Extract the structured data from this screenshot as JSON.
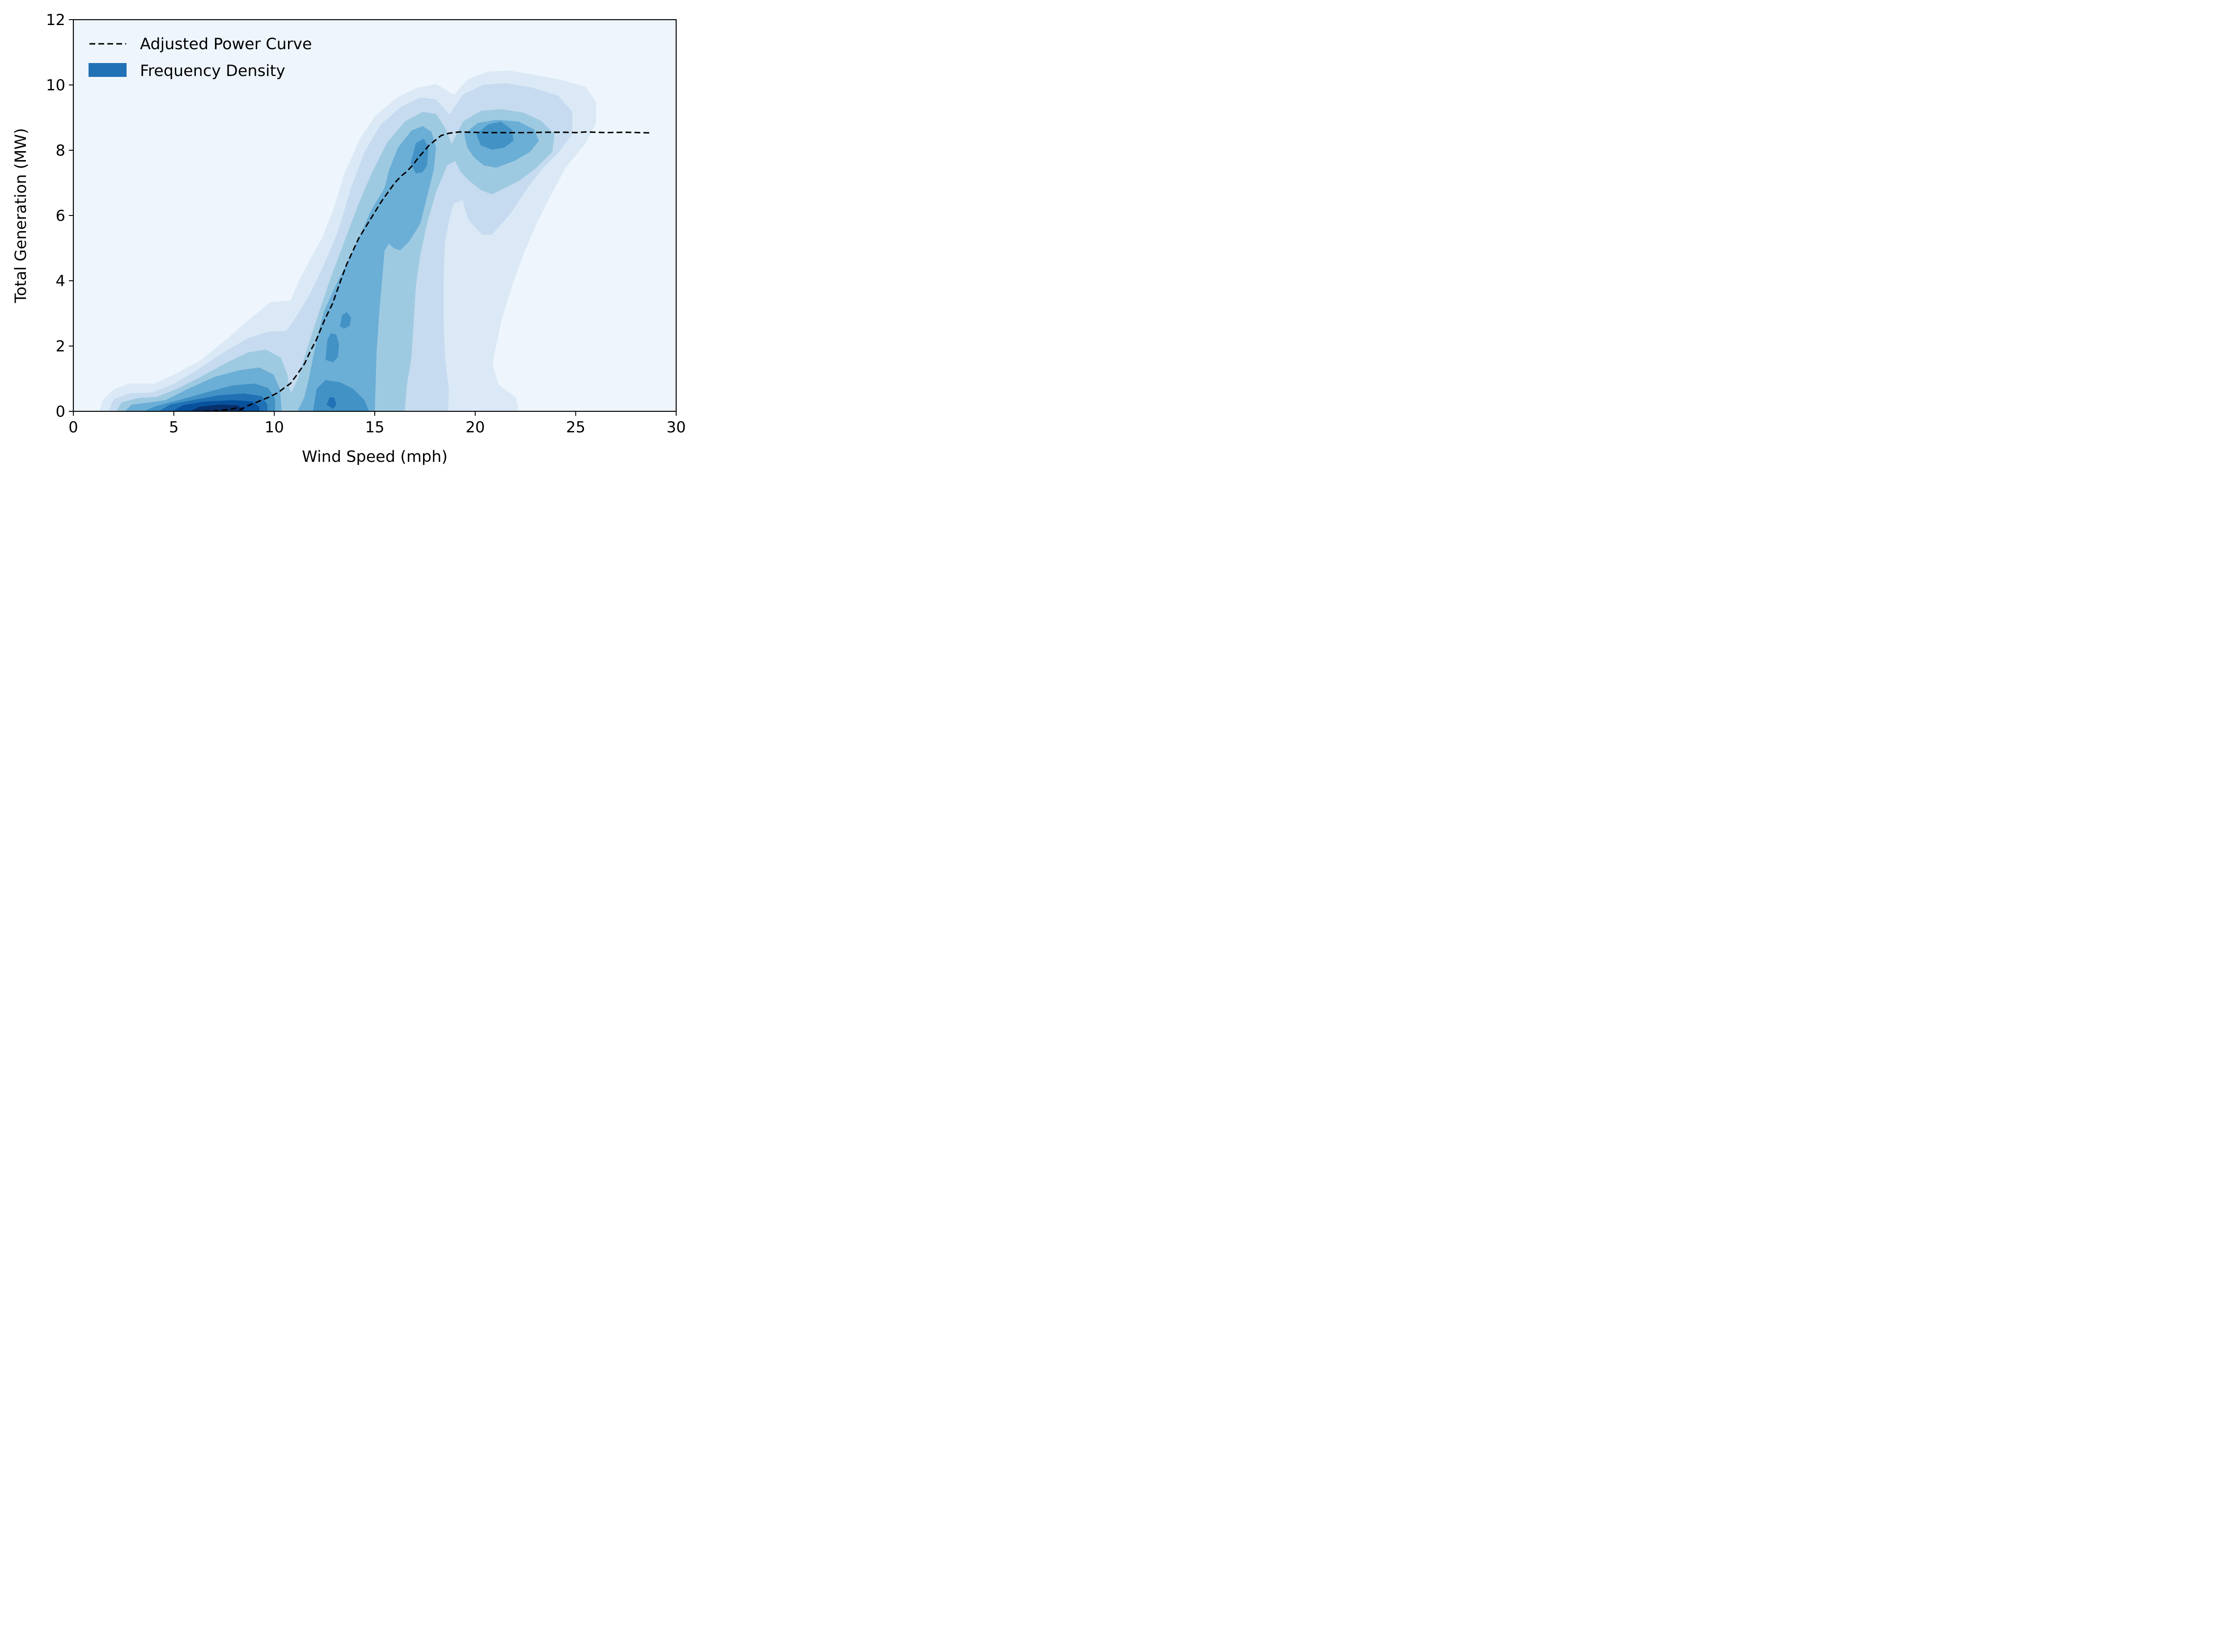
{
  "chart_data": {
    "type": "density_contour_with_line",
    "xlabel": "Wind Speed (mph)",
    "ylabel": "Total Generation (MW)",
    "xlim": [
      0,
      30
    ],
    "ylim": [
      0,
      12
    ],
    "xticks": [
      0,
      5,
      10,
      15,
      20,
      25,
      30
    ],
    "yticks": [
      0,
      2,
      4,
      6,
      8,
      10,
      12
    ],
    "grid": false,
    "legend_position": "top-left",
    "legend": [
      {
        "label": "Adjusted Power Curve",
        "style": "dashed-line",
        "color": "#000000"
      },
      {
        "label": "Frequency Density",
        "style": "filled-patch",
        "color": "#2171b5"
      }
    ],
    "background_color": "#eef5fc",
    "density_colors": [
      "#dbe9f6",
      "#c6dbef",
      "#9ecae1",
      "#6baed6",
      "#4292c6",
      "#2171b5",
      "#08519c",
      "#08306b"
    ],
    "density_modes": [
      {
        "x": 7.5,
        "y": 0.15,
        "level": "peak"
      },
      {
        "x": 12.9,
        "y": 0.3,
        "level": "high"
      },
      {
        "x": 13.3,
        "y": 2.6,
        "level": "high"
      },
      {
        "x": 17.0,
        "y": 7.8,
        "level": "high"
      },
      {
        "x": 21.0,
        "y": 8.6,
        "level": "high"
      }
    ],
    "series": [
      {
        "name": "Adjusted Power Curve",
        "x": [
          6.5,
          7.2,
          7.8,
          8.1,
          8.3,
          8.6,
          9.0,
          9.4,
          9.8,
          10.2,
          10.5,
          10.8,
          11.1,
          11.5,
          11.8,
          12.1,
          12.5,
          12.9,
          13.3,
          13.6,
          13.9,
          14.2,
          14.5,
          14.9,
          15.3,
          15.7,
          16.0,
          16.3,
          16.6,
          16.9,
          17.2,
          17.5,
          17.7,
          18.0,
          18.3,
          18.7,
          19.2,
          19.8,
          20.5,
          21.5,
          22.5,
          23.5,
          24.5,
          25.0,
          25.5,
          26.5,
          27.5,
          28.8
        ],
        "y": [
          0.0,
          0.02,
          0.06,
          0.1,
          0.05,
          0.15,
          0.25,
          0.35,
          0.45,
          0.58,
          0.72,
          0.85,
          1.1,
          1.45,
          1.85,
          2.2,
          2.8,
          3.3,
          4.0,
          4.5,
          4.9,
          5.3,
          5.6,
          6.0,
          6.4,
          6.75,
          7.0,
          7.2,
          7.35,
          7.55,
          7.8,
          8.0,
          8.15,
          8.3,
          8.45,
          8.52,
          8.56,
          8.55,
          8.54,
          8.54,
          8.54,
          8.55,
          8.55,
          8.54,
          8.56,
          8.54,
          8.55,
          8.53
        ]
      }
    ]
  }
}
